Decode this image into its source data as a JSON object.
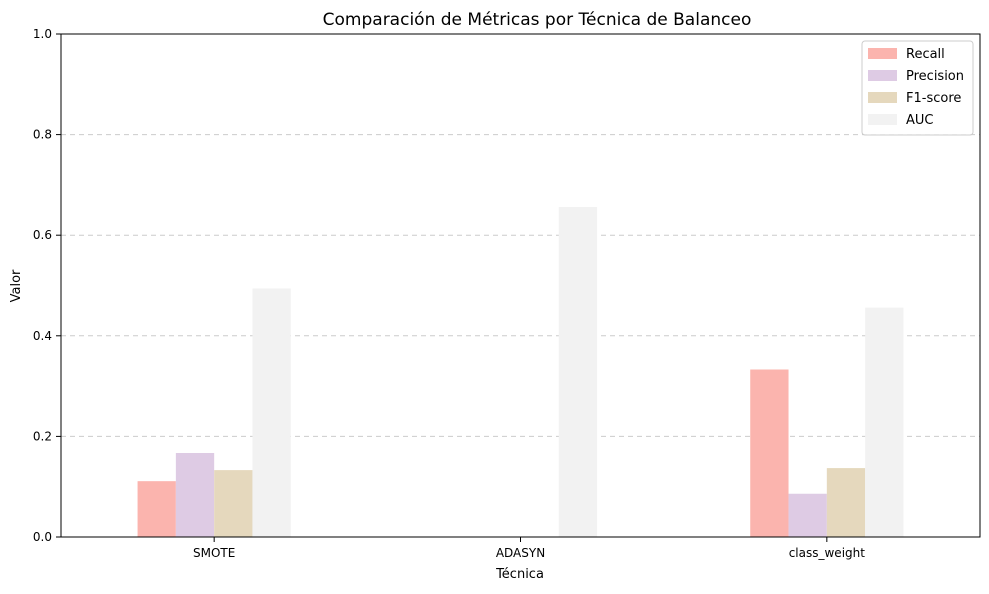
{
  "chart_data": {
    "type": "bar",
    "title": "Comparación de Métricas por Técnica de Balanceo",
    "xlabel": "Técnica",
    "ylabel": "Valor",
    "ylim": [
      0,
      1
    ],
    "yticks": [
      0.0,
      0.2,
      0.4,
      0.6,
      0.8,
      1.0
    ],
    "ytick_labels": [
      "0.0",
      "0.2",
      "0.4",
      "0.6",
      "0.8",
      "1.0"
    ],
    "grid": "horizontal dashed",
    "legend_position": "top-right",
    "categories": [
      "SMOTE",
      "ADASYN",
      "class_weight"
    ],
    "series": [
      {
        "name": "Recall",
        "color": "#fbb4ae",
        "values": [
          0.111,
          0.0,
          0.333
        ]
      },
      {
        "name": "Precision",
        "color": "#decbe4",
        "values": [
          0.167,
          0.0,
          0.086
        ]
      },
      {
        "name": "F1-score",
        "color": "#e5d8bd",
        "values": [
          0.133,
          0.0,
          0.137
        ]
      },
      {
        "name": "AUC",
        "color": "#f2f2f2",
        "values": [
          0.494,
          0.656,
          0.456
        ]
      }
    ]
  }
}
